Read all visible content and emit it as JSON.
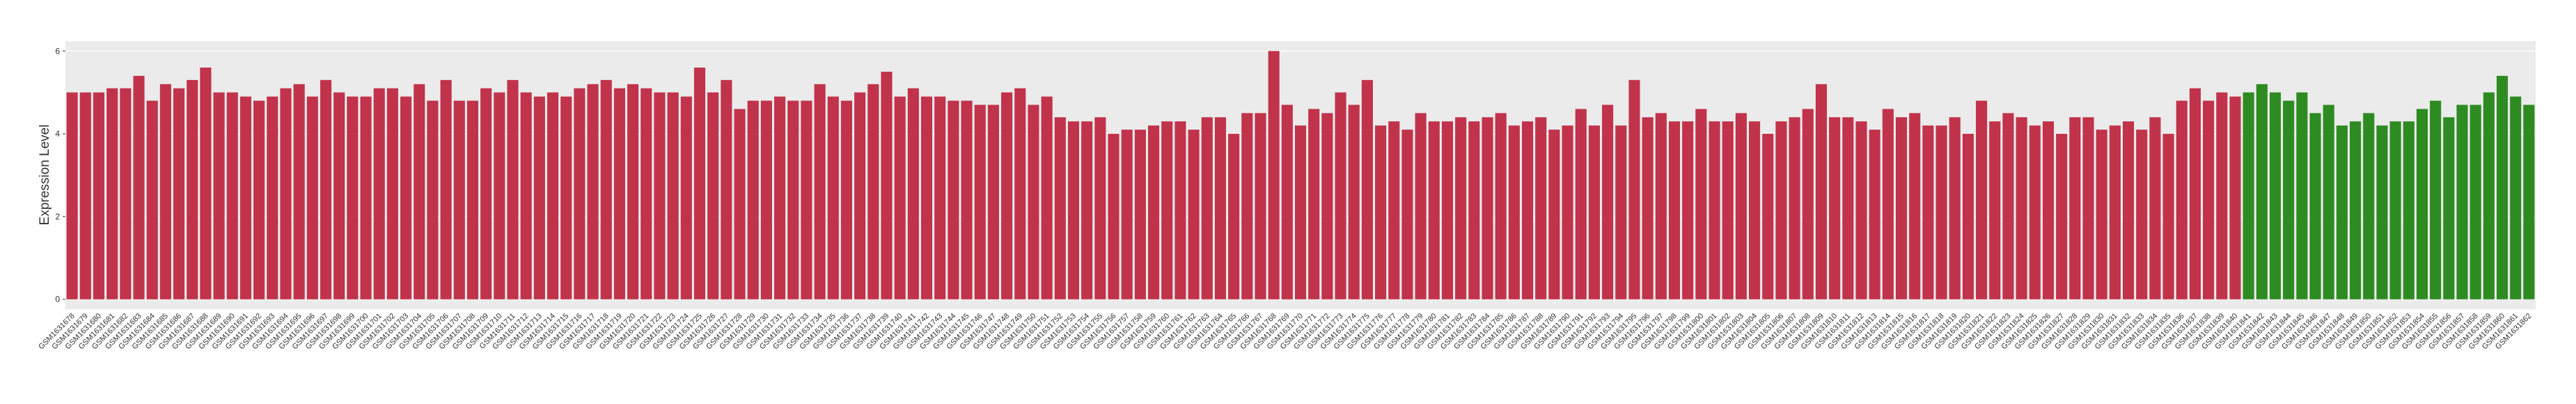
{
  "chart_data": {
    "type": "bar",
    "ylabel": "Expression Level",
    "categories": [
      "GSM1631678",
      "GSM1631679",
      "GSM1631680",
      "GSM1631681",
      "GSM1631682",
      "GSM1631683",
      "GSM1631684",
      "GSM1631685",
      "GSM1631686",
      "GSM1631687",
      "GSM1631688",
      "GSM1631689",
      "GSM1631690",
      "GSM1631691",
      "GSM1631692",
      "GSM1631693",
      "GSM1631694",
      "GSM1631695",
      "GSM1631696",
      "GSM1631697",
      "GSM1631698",
      "GSM1631699",
      "GSM1631700",
      "GSM1631701",
      "GSM1631702",
      "GSM1631703",
      "GSM1631704",
      "GSM1631705",
      "GSM1631706",
      "GSM1631707",
      "GSM1631708",
      "GSM1631709",
      "GSM1631710",
      "GSM1631711",
      "GSM1631712",
      "GSM1631713",
      "GSM1631714",
      "GSM1631715",
      "GSM1631716",
      "GSM1631717",
      "GSM1631718",
      "GSM1631719",
      "GSM1631720",
      "GSM1631721",
      "GSM1631722",
      "GSM1631723",
      "GSM1631724",
      "GSM1631725",
      "GSM1631726",
      "GSM1631727",
      "GSM1631728",
      "GSM1631729",
      "GSM1631730",
      "GSM1631731",
      "GSM1631732",
      "GSM1631733",
      "GSM1631734",
      "GSM1631735",
      "GSM1631736",
      "GSM1631737",
      "GSM1631738",
      "GSM1631739",
      "GSM1631740",
      "GSM1631741",
      "GSM1631742",
      "GSM1631743",
      "GSM1631744",
      "GSM1631745",
      "GSM1631746",
      "GSM1631747",
      "GSM1631748",
      "GSM1631749",
      "GSM1631750",
      "GSM1631751",
      "GSM1631752",
      "GSM1631753",
      "GSM1631754",
      "GSM1631755",
      "GSM1631756",
      "GSM1631757",
      "GSM1631758",
      "GSM1631759",
      "GSM1631760",
      "GSM1631761",
      "GSM1631762",
      "GSM1631763",
      "GSM1631764",
      "GSM1631765",
      "GSM1631766",
      "GSM1631767",
      "GSM1631768",
      "GSM1631769",
      "GSM1631770",
      "GSM1631771",
      "GSM1631772",
      "GSM1631773",
      "GSM1631774",
      "GSM1631775",
      "GSM1631776",
      "GSM1631777",
      "GSM1631778",
      "GSM1631779",
      "GSM1631780",
      "GSM1631781",
      "GSM1631782",
      "GSM1631783",
      "GSM1631784",
      "GSM1631785",
      "GSM1631786",
      "GSM1631787",
      "GSM1631788",
      "GSM1631789",
      "GSM1631790",
      "GSM1631791",
      "GSM1631792",
      "GSM1631793",
      "GSM1631794",
      "GSM1631795",
      "GSM1631796",
      "GSM1631797",
      "GSM1631798",
      "GSM1631799",
      "GSM1631800",
      "GSM1631801",
      "GSM1631802",
      "GSM1631803",
      "GSM1631804",
      "GSM1631805",
      "GSM1631806",
      "GSM1631807",
      "GSM1631808",
      "GSM1631809",
      "GSM1631810",
      "GSM1631811",
      "GSM1631812",
      "GSM1631813",
      "GSM1631814",
      "GSM1631815",
      "GSM1631816",
      "GSM1631817",
      "GSM1631818",
      "GSM1631819",
      "GSM1631820",
      "GSM1631821",
      "GSM1631822",
      "GSM1631823",
      "GSM1631824",
      "GSM1631825",
      "GSM1631826",
      "GSM1631827",
      "GSM1631828",
      "GSM1631829",
      "GSM1631830",
      "GSM1631831",
      "GSM1631832",
      "GSM1631833",
      "GSM1631834",
      "GSM1631835",
      "GSM1631836",
      "GSM1631837",
      "GSM1631838",
      "GSM1631839",
      "GSM1631840",
      "GSM1631841",
      "GSM1631842",
      "GSM1631843",
      "GSM1631844",
      "GSM1631845",
      "GSM1631846",
      "GSM1631847",
      "GSM1631848",
      "GSM1631849",
      "GSM1631850",
      "GSM1631851",
      "GSM1631852",
      "GSM1631853",
      "GSM1631854",
      "GSM1631855",
      "GSM1631856",
      "GSM1631857",
      "GSM1631858",
      "GSM1631859",
      "GSM1631860",
      "GSM1631861",
      "GSM1631862"
    ],
    "values": [
      5.0,
      5.0,
      5.0,
      5.1,
      5.1,
      5.4,
      4.8,
      5.2,
      5.1,
      5.3,
      5.6,
      5.0,
      5.0,
      4.9,
      4.8,
      4.9,
      5.1,
      5.2,
      4.9,
      5.3,
      5.0,
      4.9,
      4.9,
      5.1,
      5.1,
      4.9,
      5.2,
      4.8,
      5.3,
      4.8,
      4.8,
      5.1,
      5.0,
      5.3,
      5.0,
      4.9,
      5.0,
      4.9,
      5.1,
      5.2,
      5.3,
      5.1,
      5.2,
      5.1,
      5.0,
      5.0,
      4.9,
      5.6,
      5.0,
      5.3,
      4.6,
      4.8,
      4.8,
      4.9,
      4.8,
      4.8,
      5.2,
      4.9,
      4.8,
      5.0,
      5.2,
      5.5,
      4.9,
      5.1,
      4.9,
      4.9,
      4.8,
      4.8,
      4.7,
      4.7,
      5.0,
      5.1,
      4.7,
      4.9,
      4.4,
      4.3,
      4.3,
      4.4,
      4.0,
      4.1,
      4.1,
      4.2,
      4.3,
      4.3,
      4.1,
      4.4,
      4.4,
      4.0,
      4.5,
      4.5,
      6.0,
      4.7,
      4.2,
      4.6,
      4.5,
      5.0,
      4.7,
      5.3,
      4.2,
      4.3,
      4.1,
      4.5,
      4.3,
      4.3,
      4.4,
      4.3,
      4.4,
      4.5,
      4.2,
      4.3,
      4.4,
      4.1,
      4.2,
      4.6,
      4.2,
      4.7,
      4.2,
      5.3,
      4.4,
      4.5,
      4.3,
      4.3,
      4.6,
      4.3,
      4.3,
      4.5,
      4.3,
      4.0,
      4.3,
      4.4,
      4.6,
      5.2,
      4.4,
      4.4,
      4.3,
      4.1,
      4.6,
      4.4,
      4.5,
      4.2,
      4.2,
      4.4,
      4.0,
      4.8,
      4.3,
      4.5,
      4.4,
      4.2,
      4.3,
      4.0,
      4.4,
      4.4,
      4.1,
      4.2,
      4.3,
      4.1,
      4.4,
      4.0,
      4.8,
      5.1,
      4.8,
      5.0,
      4.9,
      5.0,
      5.2,
      5.0,
      4.8,
      5.0,
      4.5,
      4.7,
      4.2,
      4.3,
      4.5,
      4.2,
      4.3,
      4.3,
      4.6,
      4.8,
      4.4,
      4.7,
      4.7,
      5.0,
      5.4,
      4.9,
      4.7
    ],
    "colors": [
      "#c1334b",
      "#c1334b",
      "#c1334b",
      "#c1334b",
      "#c1334b",
      "#c1334b",
      "#c1334b",
      "#c1334b",
      "#c1334b",
      "#c1334b",
      "#c1334b",
      "#c1334b",
      "#c1334b",
      "#c1334b",
      "#c1334b",
      "#c1334b",
      "#c1334b",
      "#c1334b",
      "#c1334b",
      "#c1334b",
      "#c1334b",
      "#c1334b",
      "#c1334b",
      "#c1334b",
      "#c1334b",
      "#c1334b",
      "#c1334b",
      "#c1334b",
      "#c1334b",
      "#c1334b",
      "#c1334b",
      "#c1334b",
      "#c1334b",
      "#c1334b",
      "#c1334b",
      "#c1334b",
      "#c1334b",
      "#c1334b",
      "#c1334b",
      "#c1334b",
      "#c1334b",
      "#c1334b",
      "#c1334b",
      "#c1334b",
      "#c1334b",
      "#c1334b",
      "#c1334b",
      "#c1334b",
      "#c1334b",
      "#c1334b",
      "#c1334b",
      "#c1334b",
      "#c1334b",
      "#c1334b",
      "#c1334b",
      "#c1334b",
      "#c1334b",
      "#c1334b",
      "#c1334b",
      "#c1334b",
      "#c1334b",
      "#c1334b",
      "#c1334b",
      "#c1334b",
      "#c1334b",
      "#c1334b",
      "#c1334b",
      "#c1334b",
      "#c1334b",
      "#c1334b",
      "#c1334b",
      "#c1334b",
      "#c1334b",
      "#c1334b",
      "#c1334b",
      "#c1334b",
      "#c1334b",
      "#c1334b",
      "#c1334b",
      "#c1334b",
      "#c1334b",
      "#c1334b",
      "#c1334b",
      "#c1334b",
      "#c1334b",
      "#c1334b",
      "#c1334b",
      "#c1334b",
      "#c1334b",
      "#c1334b",
      "#c1334b",
      "#c1334b",
      "#c1334b",
      "#c1334b",
      "#c1334b",
      "#c1334b",
      "#c1334b",
      "#c1334b",
      "#c1334b",
      "#c1334b",
      "#c1334b",
      "#c1334b",
      "#c1334b",
      "#c1334b",
      "#c1334b",
      "#c1334b",
      "#c1334b",
      "#c1334b",
      "#c1334b",
      "#c1334b",
      "#c1334b",
      "#c1334b",
      "#c1334b",
      "#c1334b",
      "#c1334b",
      "#c1334b",
      "#c1334b",
      "#c1334b",
      "#c1334b",
      "#c1334b",
      "#c1334b",
      "#c1334b",
      "#c1334b",
      "#c1334b",
      "#c1334b",
      "#c1334b",
      "#c1334b",
      "#c1334b",
      "#c1334b",
      "#c1334b",
      "#c1334b",
      "#c1334b",
      "#c1334b",
      "#c1334b",
      "#c1334b",
      "#c1334b",
      "#c1334b",
      "#c1334b",
      "#c1334b",
      "#c1334b",
      "#c1334b",
      "#c1334b",
      "#c1334b",
      "#c1334b",
      "#c1334b",
      "#c1334b",
      "#c1334b",
      "#c1334b",
      "#c1334b",
      "#c1334b",
      "#c1334b",
      "#c1334b",
      "#c1334b",
      "#c1334b",
      "#c1334b",
      "#c1334b",
      "#c1334b",
      "#c1334b",
      "#c1334b",
      "#c1334b",
      "#c1334b",
      "#c1334b",
      "#c1334b",
      "#2e8b22",
      "#2e8b22",
      "#2e8b22",
      "#2e8b22",
      "#2e8b22",
      "#2e8b22",
      "#2e8b22",
      "#2e8b22",
      "#2e8b22",
      "#2e8b22",
      "#2e8b22",
      "#2e8b22",
      "#2e8b22",
      "#2e8b22",
      "#2e8b22",
      "#2e8b22",
      "#2e8b22",
      "#2e8b22",
      "#2e8b22",
      "#2e8b22",
      "#2e8b22",
      "#2e8b22"
    ],
    "ylim": [
      -0.24,
      6.24
    ],
    "yticks": [
      0,
      2,
      4,
      6
    ],
    "grid": true
  }
}
